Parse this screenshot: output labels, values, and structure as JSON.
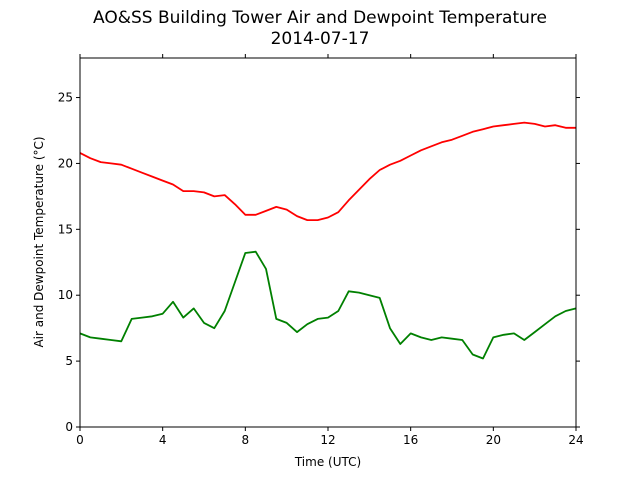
{
  "chart_data": {
    "type": "line",
    "title": "AO&SS Building Tower Air and Dewpoint Temperature",
    "subtitle": "2014-07-17",
    "xlabel": "Time (UTC)",
    "ylabel": "Air and Dewpoint Temperature (°C)",
    "xlim": [
      0,
      24
    ],
    "ylim": [
      0,
      28
    ],
    "xticks": [
      0,
      4,
      8,
      12,
      16,
      20,
      24
    ],
    "yticks": [
      0,
      5,
      10,
      15,
      20,
      25
    ],
    "grid": false,
    "legend": "none",
    "series": [
      {
        "color": "#ff0000",
        "x": [
          0,
          0.5,
          1,
          1.5,
          2,
          2.5,
          3,
          3.5,
          4,
          4.5,
          5,
          5.5,
          6,
          6.5,
          7,
          7.5,
          8,
          8.5,
          9,
          9.5,
          10,
          10.5,
          11,
          11.5,
          12,
          12.5,
          13,
          13.5,
          14,
          14.5,
          15,
          15.5,
          16,
          16.5,
          17,
          17.5,
          18,
          18.5,
          19,
          19.5,
          20,
          20.5,
          21,
          21.5,
          22,
          22.5,
          23,
          23.5,
          24
        ],
        "y": [
          20.8,
          20.4,
          20.1,
          20.0,
          19.9,
          19.6,
          19.3,
          19.0,
          18.7,
          18.4,
          17.9,
          17.9,
          17.8,
          17.5,
          17.6,
          16.9,
          16.1,
          16.1,
          16.4,
          16.7,
          16.5,
          16.0,
          15.7,
          15.7,
          15.9,
          16.3,
          17.2,
          18.0,
          18.8,
          19.5,
          19.9,
          20.2,
          20.6,
          21.0,
          21.3,
          21.6,
          21.8,
          22.1,
          22.4,
          22.6,
          22.8,
          22.9,
          23.0,
          23.1,
          23.0,
          22.8,
          22.9,
          22.7,
          22.7
        ]
      },
      {
        "color": "#008000",
        "x": [
          0,
          0.5,
          1,
          1.5,
          2,
          2.5,
          3,
          3.5,
          4,
          4.5,
          5,
          5.5,
          6,
          6.5,
          7,
          7.5,
          8,
          8.5,
          9,
          9.5,
          10,
          10.5,
          11,
          11.5,
          12,
          12.5,
          13,
          13.5,
          14,
          14.5,
          15,
          15.5,
          16,
          16.5,
          17,
          17.5,
          18,
          18.5,
          19,
          19.5,
          20,
          20.5,
          21,
          21.5,
          22,
          22.5,
          23,
          23.5,
          24
        ],
        "y": [
          7.1,
          6.8,
          6.7,
          6.6,
          6.5,
          8.2,
          8.3,
          8.4,
          8.6,
          9.5,
          8.3,
          9.0,
          7.9,
          7.5,
          8.8,
          11.0,
          13.2,
          13.3,
          12.0,
          8.2,
          7.9,
          7.2,
          7.8,
          8.2,
          8.3,
          8.8,
          10.3,
          10.2,
          10.0,
          9.8,
          7.5,
          6.3,
          7.1,
          6.8,
          6.6,
          6.8,
          6.7,
          6.6,
          5.5,
          5.2,
          6.8,
          7.0,
          7.1,
          6.6,
          7.2,
          7.8,
          8.4,
          8.8,
          9.0
        ]
      }
    ]
  }
}
